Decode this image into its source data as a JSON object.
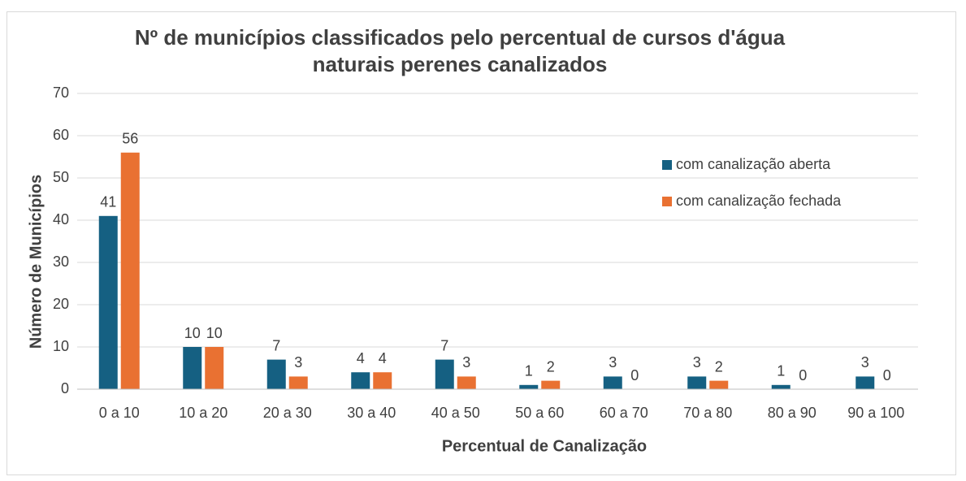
{
  "chart_data": {
    "type": "bar",
    "title": "Nº de municípios classificados pelo percentual de cursos d'água naturais perenes canalizados",
    "x_label": "Percentual de Canalização",
    "y_label": "Número de Municípios",
    "categories": [
      "0 a 10",
      "10 a 20",
      "20 a 30",
      "30 a 40",
      "40 a 50",
      "50 a 60",
      "60 a 70",
      "70 a 80",
      "80 a 90",
      "90 a 100"
    ],
    "series": [
      {
        "name": "com canalização aberta",
        "color": "#156082",
        "values": [
          41,
          10,
          7,
          4,
          7,
          1,
          3,
          3,
          1,
          3
        ]
      },
      {
        "name": "com canalização fechada",
        "color": "#e97132",
        "values": [
          56,
          10,
          3,
          4,
          3,
          2,
          0,
          2,
          0,
          0
        ]
      }
    ],
    "ylim": [
      0,
      70
    ],
    "yticks": [
      0,
      10,
      20,
      30,
      40,
      50,
      60,
      70
    ],
    "grid": true,
    "legend": "right"
  }
}
